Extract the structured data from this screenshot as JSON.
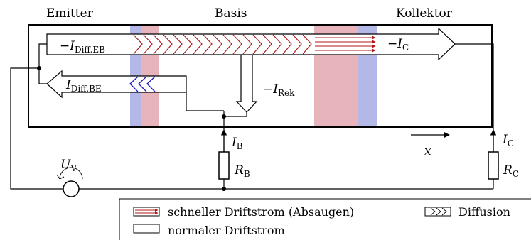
{
  "regions": {
    "emitter": "Emitter",
    "base": "Basis",
    "collector": "Kollektor"
  },
  "currents": {
    "diff_eb": {
      "sign": "−",
      "symbol": "I",
      "sub": "Diff.EB"
    },
    "diff_be": {
      "sign": "",
      "symbol": "I",
      "sub": "Diff.BE"
    },
    "rek": {
      "sign": "−",
      "symbol": "I",
      "sub": "Rek"
    },
    "c_inner": {
      "sign": "−",
      "symbol": "I",
      "sub": "C"
    },
    "b": {
      "sign": "",
      "symbol": "I",
      "sub": "B"
    },
    "c_outer": {
      "sign": "",
      "symbol": "I",
      "sub": "C"
    }
  },
  "components": {
    "rb": {
      "symbol": "R",
      "sub": "B"
    },
    "rc": {
      "symbol": "R",
      "sub": "C"
    },
    "uv": {
      "symbol": "U",
      "sub": "V"
    }
  },
  "axis": {
    "label": "x"
  },
  "legend": {
    "fast_drift": "schneller Driftstrom (Absaugen)",
    "diffusion": "Diffusion",
    "normal_drift": "normaler Driftstrom"
  },
  "colors": {
    "depletion_red": "#e8b4bc",
    "depletion_blue": "#b4b8e8",
    "diffusion_red": "#b01818",
    "diffusion_blue": "#1818c8"
  }
}
